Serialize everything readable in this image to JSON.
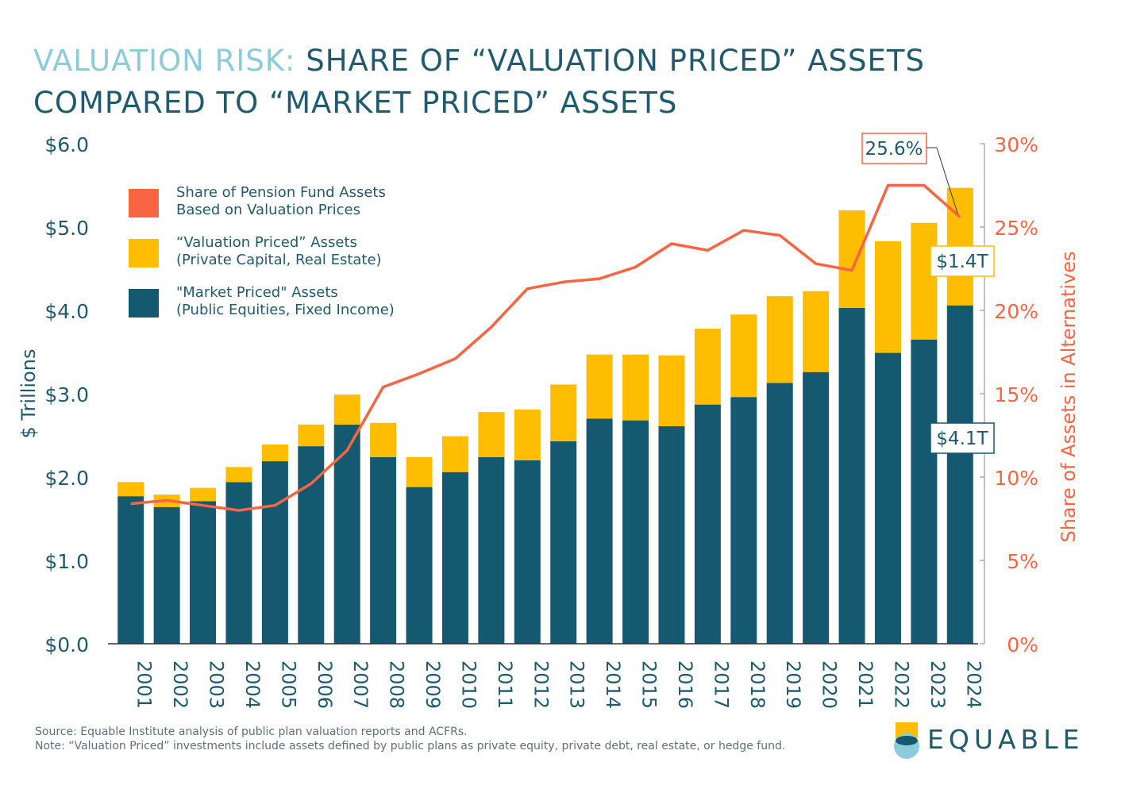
{
  "title": {
    "accent": "VALUATION RISK:",
    "line1": "SHARE OF “VALUATION PRICED” ASSETS",
    "line2": "COMPARED TO “MARKET PRICED” ASSETS"
  },
  "colors": {
    "market": "#155970",
    "valuation": "#ffbd00",
    "share": "#f96443",
    "text": "#1f5a6e",
    "title_accent": "#8ccbdb"
  },
  "legend": [
    {
      "line1": "Share of Pension Fund Assets",
      "line2": "Based on Valuation Prices",
      "color": "#f96443"
    },
    {
      "line1": "“Valuation Priced” Assets",
      "line2": "(Private Capital, Real Estate)",
      "color": "#ffbd00"
    },
    {
      "line1": "\"Market Priced\" Assets",
      "line2": "(Public Equities, Fixed Income)",
      "color": "#155970"
    }
  ],
  "chart_data": {
    "type": "bar",
    "stacked": true,
    "categories": [
      "2001",
      "2002",
      "2003",
      "2004",
      "2005",
      "2006",
      "2007",
      "2008",
      "2009",
      "2010",
      "2011",
      "2012",
      "2013",
      "2014",
      "2015",
      "2016",
      "2017",
      "2018",
      "2019",
      "2020",
      "2021",
      "2022",
      "2023",
      "2024"
    ],
    "series": [
      {
        "name": "\"Market Priced\" Assets (Public Equities, Fixed Income)",
        "axis": "left",
        "values": [
          1.77,
          1.64,
          1.71,
          1.94,
          2.19,
          2.37,
          2.63,
          2.24,
          1.88,
          2.06,
          2.24,
          2.2,
          2.43,
          2.7,
          2.68,
          2.61,
          2.87,
          2.96,
          3.13,
          3.26,
          4.03,
          3.49,
          3.65,
          4.06
        ]
      },
      {
        "name": "“Valuation Priced” Assets (Private Capital, Real Estate)",
        "axis": "left",
        "values": [
          0.17,
          0.15,
          0.16,
          0.18,
          0.2,
          0.26,
          0.36,
          0.41,
          0.36,
          0.43,
          0.54,
          0.61,
          0.68,
          0.77,
          0.79,
          0.85,
          0.91,
          0.99,
          1.04,
          0.97,
          1.17,
          1.34,
          1.4,
          1.41
        ]
      },
      {
        "name": "Share of Pension Fund Assets Based on Valuation Prices",
        "type": "line",
        "axis": "right",
        "values": [
          8.4,
          8.6,
          8.3,
          8.0,
          8.3,
          9.6,
          11.6,
          15.4,
          16.2,
          17.1,
          19.0,
          21.3,
          21.7,
          21.9,
          22.6,
          24.0,
          23.6,
          24.8,
          24.5,
          22.8,
          22.4,
          27.5,
          27.5,
          25.6
        ]
      }
    ],
    "y_left": {
      "label": "$ Trillions",
      "min": 0,
      "max": 6,
      "ticks": [
        "$0.0",
        "$1.0",
        "$2.0",
        "$3.0",
        "$4.0",
        "$5.0",
        "$6.0"
      ]
    },
    "y_right": {
      "label": "Share of Assets in Alternatives",
      "min": 0,
      "max": 30,
      "ticks": [
        "0%",
        "5%",
        "10%",
        "15%",
        "20%",
        "25%",
        "30%"
      ]
    },
    "annotations": [
      {
        "text": "25.6%",
        "target": "2024-share"
      },
      {
        "text": "$1.4T",
        "target": "2024-valuation"
      },
      {
        "text": "$4.1T",
        "target": "2024-market"
      }
    ],
    "grid": false,
    "legend_position": "top-left"
  },
  "footer": {
    "source": "Source: Equable Institute analysis of public plan valuation reports and ACFRs.",
    "note": "Note: “Valuation Priced” investments include assets defined by public plans as private equity, private debt, real estate, or hedge fund.",
    "brand": "EQUABLE"
  }
}
